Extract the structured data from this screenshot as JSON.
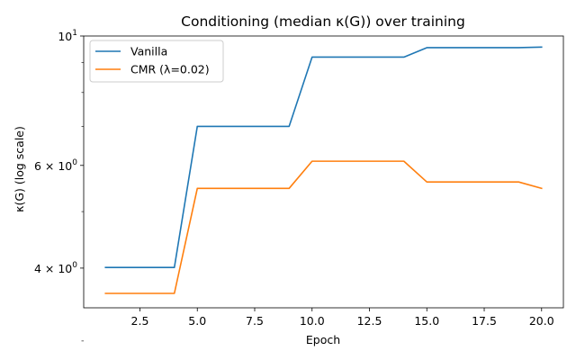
{
  "chart_data": {
    "type": "line",
    "title": "Conditioning (median κ(G)) over training",
    "xlabel": "Epoch",
    "ylabel": "κ(G) (log scale)",
    "yscale": "log",
    "xlim": [
      0.05,
      20.95
    ],
    "ylim": [
      3.42,
      10.0
    ],
    "x_ticks": [
      2.5,
      5.0,
      7.5,
      10.0,
      12.5,
      15.0,
      17.5,
      20.0
    ],
    "x_tick_labels": [
      "2.5",
      "5.0",
      "7.5",
      "10.0",
      "12.5",
      "15.0",
      "17.5",
      "20.0"
    ],
    "y_major_ticks": [
      {
        "value": 4,
        "base": "4",
        "sep": "×",
        "exp_base": "10",
        "exp": "0"
      },
      {
        "value": 6,
        "base": "6",
        "sep": "×",
        "exp_base": "10",
        "exp": "0"
      },
      {
        "value": 10,
        "base": "",
        "sep": "",
        "exp_base": "10",
        "exp": "1"
      }
    ],
    "y_minor_ticks": [
      3,
      5,
      7,
      8,
      9
    ],
    "grid": false,
    "legend_position": "top-left",
    "x": [
      1,
      2,
      3,
      4,
      5,
      6,
      7,
      8,
      9,
      10,
      11,
      12,
      13,
      14,
      15,
      16,
      17,
      18,
      19,
      20
    ],
    "series": [
      {
        "name": "Vanilla",
        "color": "#1f77b4",
        "values": [
          4.01,
          4.01,
          4.01,
          4.01,
          7.0,
          7.0,
          7.0,
          7.0,
          7.0,
          9.2,
          9.2,
          9.2,
          9.2,
          9.2,
          9.55,
          9.55,
          9.55,
          9.55,
          9.55,
          9.57
        ]
      },
      {
        "name": "CMR (λ=0.02)",
        "color": "#ff7f0e",
        "values": [
          3.62,
          3.62,
          3.62,
          3.62,
          5.48,
          5.48,
          5.48,
          5.48,
          5.48,
          6.1,
          6.1,
          6.1,
          6.1,
          6.1,
          5.62,
          5.62,
          5.62,
          5.62,
          5.62,
          5.48
        ]
      }
    ]
  }
}
